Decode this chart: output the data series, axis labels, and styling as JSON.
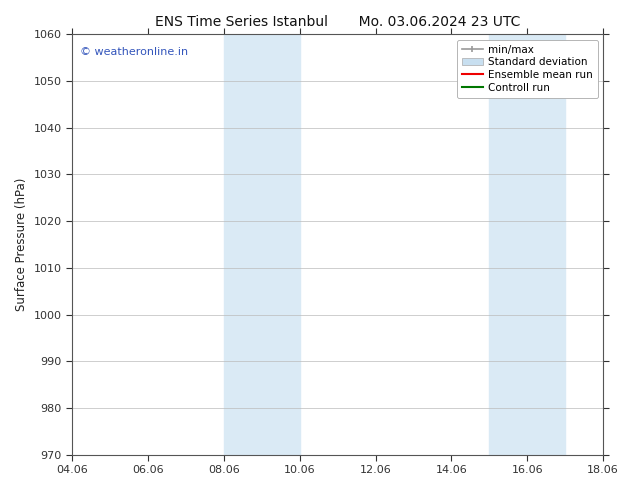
{
  "title_left": "ENS Time Series Istanbul",
  "title_right": "Mo. 03.06.2024 23 UTC",
  "ylabel": "Surface Pressure (hPa)",
  "ylim": [
    970,
    1060
  ],
  "yticks": [
    970,
    980,
    990,
    1000,
    1010,
    1020,
    1030,
    1040,
    1050,
    1060
  ],
  "xlim_start": 4.06,
  "xlim_end": 18.06,
  "xtick_labels": [
    "04.06",
    "06.06",
    "08.06",
    "10.06",
    "12.06",
    "14.06",
    "16.06",
    "18.06"
  ],
  "xtick_values": [
    4.06,
    6.06,
    8.06,
    10.06,
    12.06,
    14.06,
    16.06,
    18.06
  ],
  "shaded_regions": [
    {
      "x_start": 8.06,
      "x_end": 10.06,
      "color": "#daeaf5"
    },
    {
      "x_start": 15.06,
      "x_end": 17.06,
      "color": "#daeaf5"
    }
  ],
  "watermark_text": "© weatheronline.in",
  "watermark_color": "#3355bb",
  "legend_items": [
    {
      "label": "min/max",
      "color": "#999999",
      "lw": 1.2,
      "style": "minmax"
    },
    {
      "label": "Standard deviation",
      "color": "#c8dff0",
      "lw": 6,
      "style": "band"
    },
    {
      "label": "Ensemble mean run",
      "color": "#ee0000",
      "lw": 1.5,
      "style": "line"
    },
    {
      "label": "Controll run",
      "color": "#007700",
      "lw": 1.5,
      "style": "line"
    }
  ],
  "bg_color": "#ffffff",
  "grid_color": "#bbbbbb",
  "title_fontsize": 10,
  "label_fontsize": 8.5,
  "tick_fontsize": 8,
  "legend_fontsize": 7.5
}
